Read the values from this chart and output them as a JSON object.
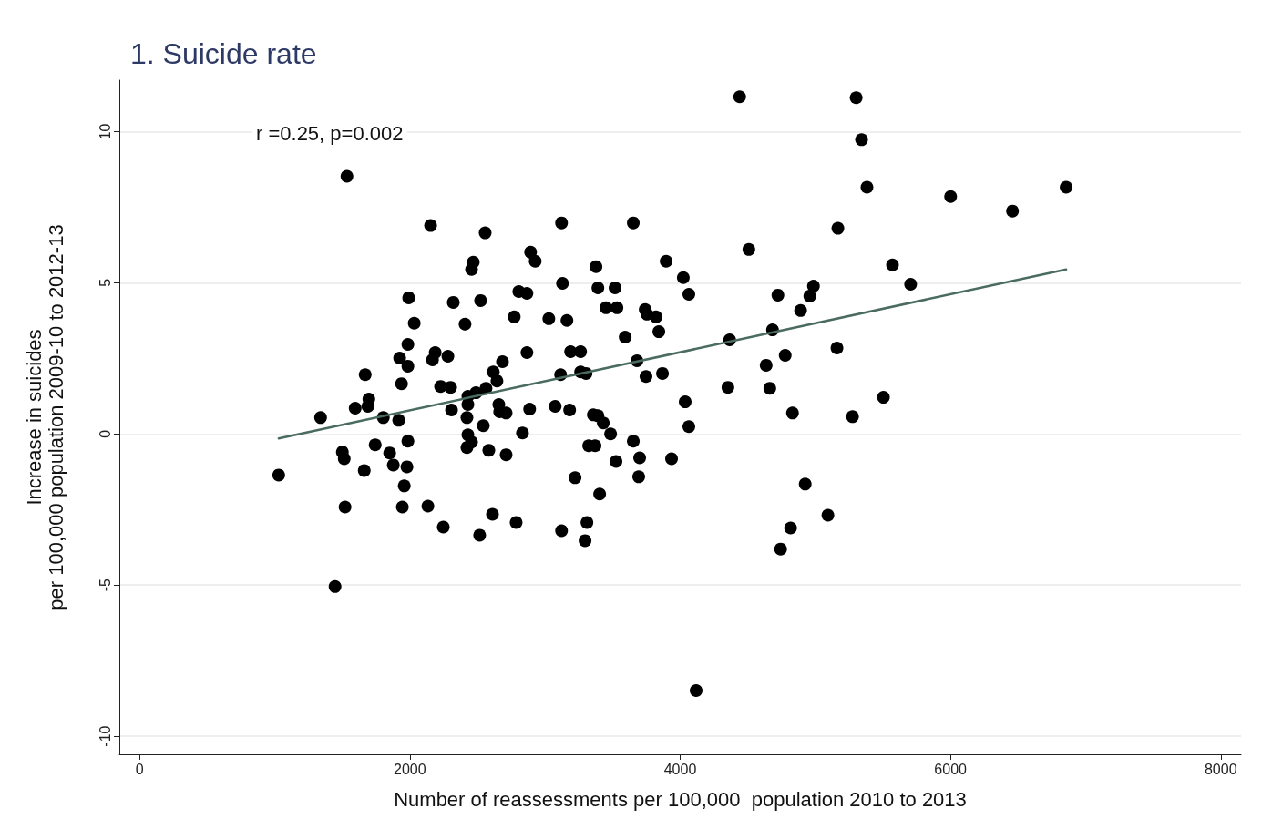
{
  "chart_data": {
    "type": "scatter",
    "title": "1. Suicide rate",
    "xlabel": "Number of reassessments per 100,000  population 2010 to 2013",
    "ylabel": "Increase in suicides\nper 100,000 population 2009-10 to 2012-13",
    "annotations": [
      "r =0.25, p=0.002"
    ],
    "xlim": [
      -150,
      8150
    ],
    "ylim": [
      -10.6,
      11.7
    ],
    "xticks": [
      0,
      2000,
      4000,
      6000,
      8000
    ],
    "yticks": [
      -10,
      -5,
      0,
      5,
      10
    ],
    "grid": "y",
    "marker": "circle",
    "series": [
      {
        "color": "#000000",
        "x": [
          1029,
          1339,
          1446,
          1534,
          1500,
          1514,
          1520,
          1595,
          1669,
          1696,
          1689,
          1662,
          1743,
          1803,
          1850,
          1877,
          1917,
          1924,
          1938,
          1944,
          1958,
          1978,
          1985,
          1985,
          1991,
          1985,
          2032,
          2133,
          2153,
          2167,
          2187,
          2227,
          2247,
          2281,
          2301,
          2308,
          2321,
          2408,
          2429,
          2429,
          2422,
          2429,
          2422,
          2456,
          2469,
          2456,
          2489,
          2516,
          2523,
          2543,
          2557,
          2563,
          2584,
          2611,
          2617,
          2644,
          2658,
          2664,
          2685,
          2712,
          2712,
          2772,
          2786,
          2806,
          2833,
          2866,
          2866,
          2893,
          2927,
          2886,
          3028,
          3075,
          3115,
          3122,
          3129,
          3122,
          3162,
          3182,
          3189,
          3222,
          3263,
          3263,
          3303,
          3296,
          3310,
          3323,
          3370,
          3357,
          3377,
          3391,
          3391,
          3404,
          3431,
          3451,
          3485,
          3518,
          3532,
          3525,
          3593,
          3653,
          3653,
          3680,
          3700,
          3693,
          3741,
          3754,
          3747,
          3821,
          3842,
          3869,
          3896,
          3936,
          4023,
          4037,
          4064,
          4064,
          4118,
          4366,
          4353,
          4440,
          4508,
          4636,
          4663,
          4683,
          4723,
          4743,
          4777,
          4817,
          4831,
          4891,
          4925,
          4959,
          4986,
          5093,
          5160,
          5167,
          5275,
          5302,
          5342,
          5382,
          5504,
          5571,
          5705,
          6001,
          6459,
          6856
        ],
        "values": [
          -1.36,
          0.54,
          -5.05,
          8.52,
          -0.6,
          -0.82,
          -2.42,
          0.85,
          1.96,
          1.15,
          0.91,
          -1.21,
          -0.36,
          0.54,
          -0.63,
          -1.03,
          0.45,
          2.51,
          1.66,
          -2.42,
          -1.72,
          -1.09,
          -0.24,
          2.96,
          4.5,
          2.24,
          3.66,
          -2.39,
          6.89,
          2.45,
          2.69,
          1.57,
          -3.08,
          2.57,
          1.54,
          0.79,
          4.35,
          3.63,
          1.24,
          -0.03,
          0.54,
          0.97,
          -0.45,
          -0.27,
          5.68,
          5.44,
          1.36,
          -3.35,
          4.41,
          0.27,
          6.65,
          1.51,
          -0.54,
          -2.66,
          2.05,
          1.75,
          0.97,
          0.73,
          2.39,
          -0.69,
          0.69,
          3.87,
          -2.93,
          4.71,
          0.03,
          4.65,
          2.69,
          6.01,
          5.71,
          0.82,
          3.81,
          0.91,
          1.96,
          6.98,
          4.98,
          -3.2,
          3.75,
          0.79,
          2.72,
          -1.45,
          2.72,
          2.05,
          2.0,
          -3.53,
          -2.93,
          -0.39,
          -0.39,
          0.63,
          5.53,
          4.83,
          0.6,
          -1.99,
          0.36,
          4.17,
          0.0,
          4.83,
          4.17,
          -0.91,
          3.2,
          6.98,
          -0.24,
          2.42,
          -0.79,
          -1.42,
          4.11,
          3.96,
          1.9,
          3.87,
          3.38,
          2.0,
          5.71,
          -0.82,
          5.17,
          1.06,
          4.62,
          0.24,
          -8.49,
          3.11,
          1.54,
          11.15,
          6.1,
          2.27,
          1.51,
          3.44,
          4.59,
          -3.81,
          2.6,
          -3.11,
          0.69,
          4.08,
          -1.66,
          4.56,
          4.89,
          -2.69,
          2.84,
          6.8,
          0.57,
          11.12,
          9.73,
          8.16,
          1.21,
          5.59,
          4.95,
          7.85,
          7.37,
          8.16
        ]
      },
      {
        "type": "line",
        "color": "#4a6b5f",
        "marker": "none",
        "line_style": "solid",
        "x": [
          1029,
          6856
        ],
        "values": [
          -0.15,
          5.44
        ]
      }
    ]
  }
}
